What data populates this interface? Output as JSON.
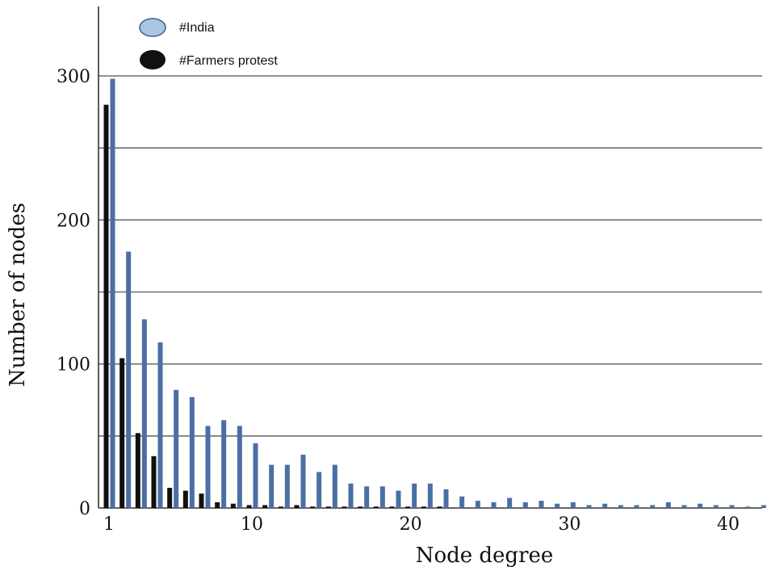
{
  "chart_data": {
    "type": "bar",
    "xlabel": "Node degree",
    "ylabel": "Number of nodes",
    "ylim": [
      0,
      300
    ],
    "y_ticks": [
      "0",
      "100",
      "200",
      "300"
    ],
    "x_ticks": [
      "1",
      "10",
      "20",
      "30",
      "40"
    ],
    "x_tick_values": [
      1,
      10,
      20,
      30,
      40
    ],
    "grid": true,
    "legend_position": "top-left",
    "series": [
      {
        "name": "#India",
        "color": "#4a6fa5",
        "x": [
          1,
          2,
          3,
          4,
          5,
          6,
          7,
          8,
          9,
          10,
          11,
          12,
          13,
          14,
          15,
          16,
          17,
          18,
          19,
          20,
          21,
          22,
          23,
          24,
          25,
          26,
          27,
          28,
          29,
          30,
          31,
          32,
          33,
          34,
          35,
          36,
          37,
          38,
          39,
          40,
          41,
          42
        ],
        "values": [
          298,
          178,
          131,
          115,
          82,
          77,
          57,
          61,
          57,
          45,
          30,
          30,
          37,
          25,
          30,
          17,
          15,
          15,
          12,
          17,
          17,
          13,
          8,
          5,
          4,
          7,
          4,
          5,
          3,
          4,
          2,
          3,
          2,
          2,
          2,
          4,
          2,
          3,
          2,
          2,
          1,
          2
        ]
      },
      {
        "name": "#Farmers protest",
        "color": "#111111",
        "x": [
          1,
          2,
          3,
          4,
          5,
          6,
          7,
          8,
          9,
          10,
          11,
          12,
          13,
          14,
          15,
          16,
          17,
          18,
          19,
          20,
          21,
          22,
          23,
          24,
          25,
          26,
          27,
          28,
          29,
          30,
          31,
          32,
          33,
          34,
          35,
          36,
          37,
          38,
          39,
          40,
          41,
          42
        ],
        "values": [
          280,
          104,
          52,
          36,
          14,
          12,
          10,
          4,
          3,
          2,
          2,
          1,
          2,
          1,
          1,
          1,
          1,
          1,
          1,
          1,
          1,
          1,
          0,
          0,
          0,
          0,
          0,
          0,
          0,
          0,
          0,
          0,
          0,
          0,
          0,
          0,
          0,
          0,
          0,
          0,
          0,
          0
        ]
      }
    ]
  }
}
